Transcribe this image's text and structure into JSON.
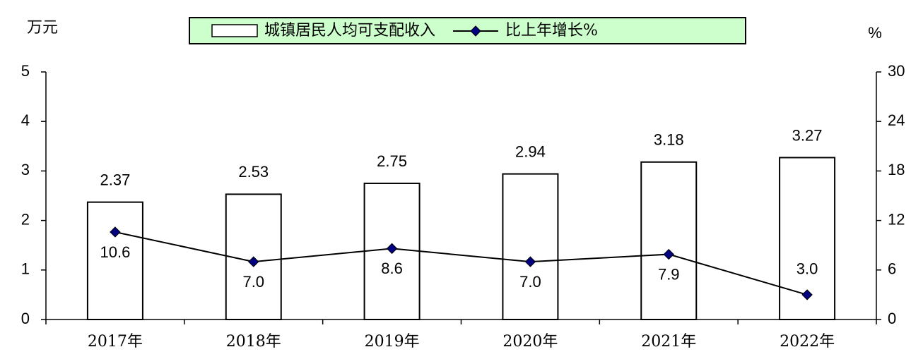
{
  "chart_data": {
    "type": "bar",
    "y_label": "万元",
    "y2_label": "%",
    "categories": [
      "2017年",
      "2018年",
      "2019年",
      "2020年",
      "2021年",
      "2022年"
    ],
    "series": [
      {
        "name": "城镇居民人均可支配收入",
        "type": "bar",
        "color": "#ffffff",
        "values": [
          2.37,
          2.53,
          2.75,
          2.94,
          3.18,
          3.27
        ]
      },
      {
        "name": "比上年增长%",
        "type": "line",
        "axis": "y2",
        "color": "#000080",
        "values": [
          10.6,
          7.0,
          8.6,
          7.0,
          7.9,
          3.0
        ],
        "value_labels": [
          "10.6",
          "7.0",
          "8.6",
          "7.0",
          "7.9",
          "3.0"
        ]
      }
    ],
    "ylim": [
      0,
      5
    ],
    "yticks": [
      0,
      1,
      2,
      3,
      4,
      5
    ],
    "y2lim": [
      0,
      30
    ],
    "y2ticks": [
      0,
      6,
      12,
      18,
      24,
      30
    ],
    "legend_fill": "#ccffcc",
    "legend": "top"
  }
}
